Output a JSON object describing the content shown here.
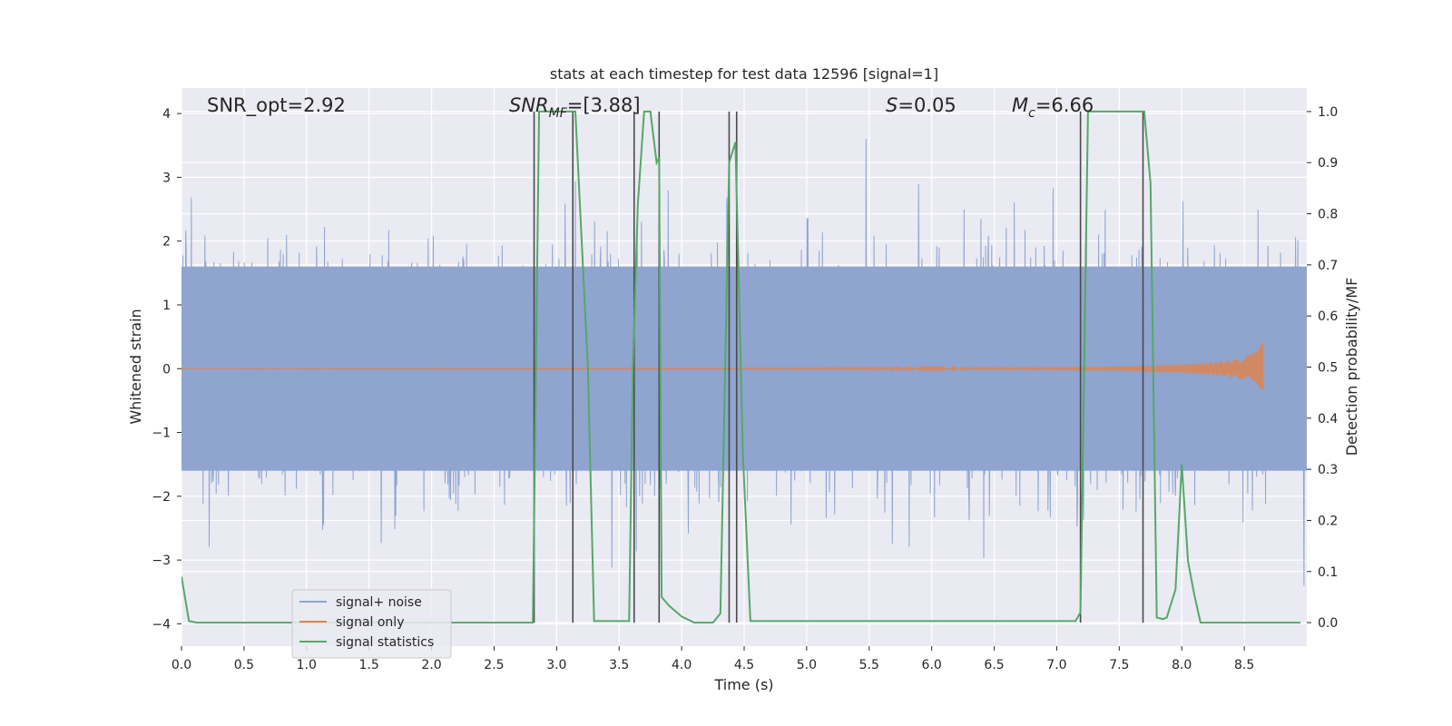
{
  "chart_data": {
    "type": "line",
    "title": "stats at each timestep for test data 12596 [signal=1]",
    "xlabel": "Time (s)",
    "ylabel": "Whitened strain",
    "y2label": "Detection probability/MF",
    "xlim": [
      0.0,
      9.0
    ],
    "ylim": [
      -4.35,
      4.4
    ],
    "y2lim": [
      -0.046,
      1.046
    ],
    "xticks": [
      "0.0",
      "0.5",
      "1.0",
      "1.5",
      "2.0",
      "2.5",
      "3.0",
      "3.5",
      "4.0",
      "4.5",
      "5.0",
      "5.5",
      "6.0",
      "6.5",
      "7.0",
      "7.5",
      "8.0",
      "8.5"
    ],
    "xtick_values": [
      0.0,
      0.5,
      1.0,
      1.5,
      2.0,
      2.5,
      3.0,
      3.5,
      4.0,
      4.5,
      5.0,
      5.5,
      6.0,
      6.5,
      7.0,
      7.5,
      8.0,
      8.5
    ],
    "yticks": [
      "−4",
      "−3",
      "−2",
      "−1",
      "0",
      "1",
      "2",
      "3",
      "4"
    ],
    "ytick_values": [
      -4,
      -3,
      -2,
      -1,
      0,
      1,
      2,
      3,
      4
    ],
    "y2ticks": [
      "0.0",
      "0.1",
      "0.2",
      "0.3",
      "0.4",
      "0.5",
      "0.6",
      "0.7",
      "0.8",
      "0.9",
      "1.0"
    ],
    "y2tick_values": [
      0.0,
      0.1,
      0.2,
      0.3,
      0.4,
      0.5,
      0.6,
      0.7,
      0.8,
      0.9,
      1.0
    ],
    "grid": true,
    "legend_position": "lower-left",
    "annotations": {
      "snr_opt": "SNR_opt=2.92",
      "snr_mf_main": "SNR",
      "snr_mf_sub": "MF",
      "snr_mf_value": "=[3.88]",
      "s_main": "S",
      "s_value": "=0.05",
      "mc_main": "M",
      "mc_sub": "c",
      "mc_value": "=6.66"
    },
    "series": [
      {
        "name": "signal+ noise",
        "color": "#8fa5cf",
        "axis": "left",
        "kind": "noisy strain, approx range [-3.8, 4.0], bulk within ±1.6",
        "x": [
          0.0,
          9.0
        ]
      },
      {
        "name": "signal only",
        "color": "#dd8452",
        "axis": "left",
        "kind": "chirp, amplitude growing to ~0.45 near end",
        "x_start": 0.0,
        "x_end": 8.65,
        "envelope_x": [
          0.0,
          5.0,
          6.0,
          7.0,
          7.5,
          8.0,
          8.3,
          8.5,
          8.6,
          8.65
        ],
        "envelope_y": [
          0.003,
          0.006,
          0.01,
          0.02,
          0.035,
          0.07,
          0.11,
          0.17,
          0.28,
          0.45
        ]
      },
      {
        "name": "signal statistics",
        "color": "#55a868",
        "axis": "right",
        "x": [
          0.0,
          0.06,
          0.12,
          2.81,
          2.86,
          3.15,
          3.2,
          3.25,
          3.3,
          3.58,
          3.61,
          3.65,
          3.7,
          3.75,
          3.8,
          3.82,
          3.84,
          3.9,
          4.0,
          4.1,
          4.25,
          4.31,
          4.38,
          4.43,
          4.49,
          4.55,
          7.15,
          7.19,
          7.25,
          7.7,
          7.75,
          7.8,
          7.85,
          7.88,
          7.95,
          8.0,
          8.05,
          8.1,
          8.15,
          8.5,
          8.95
        ],
        "y": [
          0.09,
          0.003,
          0.0,
          0.0,
          1.0,
          1.0,
          0.75,
          0.5,
          0.003,
          0.003,
          0.5,
          0.82,
          1.0,
          1.0,
          0.9,
          0.91,
          0.05,
          0.033,
          0.012,
          0.0,
          0.0,
          0.018,
          0.9,
          0.94,
          0.33,
          0.003,
          0.003,
          0.02,
          1.0,
          1.0,
          0.86,
          0.01,
          0.007,
          0.01,
          0.065,
          0.31,
          0.12,
          0.055,
          0.0,
          0.0,
          0.0
        ]
      }
    ],
    "vlines_x": [
      2.82,
      3.13,
      3.62,
      3.82,
      4.38,
      4.44,
      7.19,
      7.69
    ],
    "vline_color": "#4a4a4a"
  },
  "colors": {
    "plot_background": "#eaeaf2",
    "grid": "#ffffff",
    "text": "#262626"
  }
}
